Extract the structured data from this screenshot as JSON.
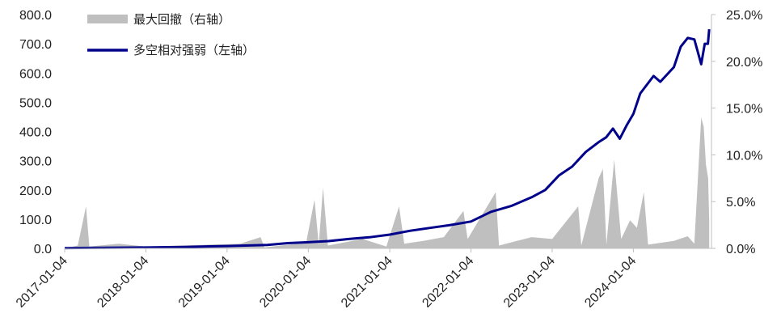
{
  "chart_data": {
    "type": "line",
    "title": "",
    "xlabel": "",
    "ylabel": "",
    "legend": {
      "placement": "top-left",
      "entries": [
        "最大回撤（右轴）",
        "多空相对强弱（左轴）"
      ]
    },
    "x_ticks": [
      "2017-01-04",
      "2018-01-04",
      "2019-01-04",
      "2020-01-04",
      "2021-01-04",
      "2022-01-04",
      "2023-01-04",
      "2024-01-04"
    ],
    "y_left": {
      "ticks": [
        "0.0",
        "100.0",
        "200.0",
        "300.0",
        "400.0",
        "500.0",
        "600.0",
        "700.0",
        "800.0"
      ],
      "ylim": [
        0,
        800
      ]
    },
    "y_right": {
      "ticks": [
        "0.0%",
        "5.0%",
        "10.0%",
        "15.0%",
        "20.0%",
        "25.0%"
      ],
      "ylim": [
        0,
        25
      ]
    },
    "colors": {
      "line": "#00008B",
      "area": "#BFBFBF",
      "axis": "#BFBFBF"
    },
    "series": [
      {
        "name": "多空相对强弱（左轴）",
        "axis": "left",
        "kind": "line",
        "points": [
          [
            "2017-01-04",
            1
          ],
          [
            "2017-07-04",
            2
          ],
          [
            "2018-01-04",
            3
          ],
          [
            "2018-07-04",
            5
          ],
          [
            "2019-01-04",
            8
          ],
          [
            "2019-07-04",
            12
          ],
          [
            "2019-10-04",
            18
          ],
          [
            "2020-01-04",
            21
          ],
          [
            "2020-04-04",
            25
          ],
          [
            "2020-07-04",
            32
          ],
          [
            "2020-10-04",
            38
          ],
          [
            "2021-01-04",
            47
          ],
          [
            "2021-04-04",
            60
          ],
          [
            "2021-07-04",
            70
          ],
          [
            "2021-10-04",
            80
          ],
          [
            "2022-01-04",
            92
          ],
          [
            "2022-04-04",
            125
          ],
          [
            "2022-07-04",
            145
          ],
          [
            "2022-10-04",
            175
          ],
          [
            "2022-12-04",
            200
          ],
          [
            "2023-02-04",
            250
          ],
          [
            "2023-04-04",
            280
          ],
          [
            "2023-06-04",
            330
          ],
          [
            "2023-08-04",
            365
          ],
          [
            "2023-09-04",
            380
          ],
          [
            "2023-10-04",
            410
          ],
          [
            "2023-11-04",
            375
          ],
          [
            "2023-12-04",
            420
          ],
          [
            "2024-01-04",
            460
          ],
          [
            "2024-02-04",
            530
          ],
          [
            "2024-04-04",
            590
          ],
          [
            "2024-05-04",
            570
          ],
          [
            "2024-07-04",
            620
          ],
          [
            "2024-08-04",
            690
          ],
          [
            "2024-09-04",
            720
          ],
          [
            "2024-10-04",
            715
          ],
          [
            "2024-11-04",
            630
          ],
          [
            "2024-11-20",
            700
          ],
          [
            "2024-12-04",
            700
          ],
          [
            "2024-12-10",
            750
          ]
        ]
      },
      {
        "name": "最大回撤（右轴）",
        "axis": "right",
        "kind": "area",
        "points": [
          [
            "2017-01-04",
            0
          ],
          [
            "2017-03-04",
            0.3
          ],
          [
            "2017-04-10",
            4.5
          ],
          [
            "2017-04-25",
            0.2
          ],
          [
            "2017-09-04",
            0.5
          ],
          [
            "2018-01-04",
            0.2
          ],
          [
            "2019-03-04",
            0.5
          ],
          [
            "2019-06-04",
            1.2
          ],
          [
            "2019-06-20",
            0.1
          ],
          [
            "2019-12-25",
            0.6
          ],
          [
            "2020-02-01",
            5.2
          ],
          [
            "2020-02-20",
            0.4
          ],
          [
            "2020-03-10",
            6.5
          ],
          [
            "2020-04-01",
            0.3
          ],
          [
            "2020-09-04",
            1.0
          ],
          [
            "2020-12-20",
            0.2
          ],
          [
            "2021-02-15",
            4.5
          ],
          [
            "2021-03-10",
            0.5
          ],
          [
            "2021-06-04",
            0.8
          ],
          [
            "2021-09-04",
            1.2
          ],
          [
            "2021-12-01",
            4.0
          ],
          [
            "2021-12-20",
            1.0
          ],
          [
            "2022-04-25",
            6.0
          ],
          [
            "2022-05-10",
            0.3
          ],
          [
            "2022-10-04",
            1.2
          ],
          [
            "2023-01-04",
            1.0
          ],
          [
            "2023-05-01",
            4.5
          ],
          [
            "2023-05-15",
            0.3
          ],
          [
            "2023-08-01",
            7.5
          ],
          [
            "2023-08-20",
            8.5
          ],
          [
            "2023-09-05",
            0.4
          ],
          [
            "2023-10-10",
            9.5
          ],
          [
            "2023-11-10",
            1.0
          ],
          [
            "2023-12-20",
            3.0
          ],
          [
            "2024-01-20",
            2.2
          ],
          [
            "2024-02-20",
            6.0
          ],
          [
            "2024-03-10",
            0.4
          ],
          [
            "2024-07-04",
            0.8
          ],
          [
            "2024-09-04",
            1.3
          ],
          [
            "2024-10-04",
            0.5
          ],
          [
            "2024-11-04",
            14.0
          ],
          [
            "2024-11-15",
            13.0
          ],
          [
            "2024-11-25",
            9.0
          ],
          [
            "2024-12-05",
            7.5
          ],
          [
            "2024-12-10",
            3.0
          ]
        ]
      }
    ]
  }
}
